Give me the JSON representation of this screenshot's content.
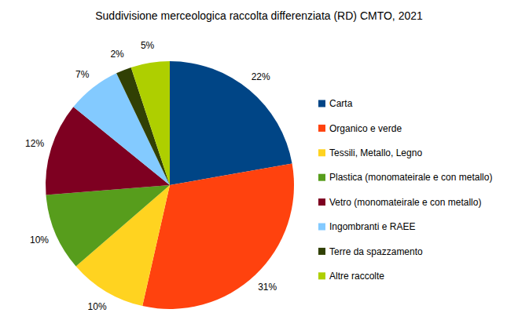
{
  "chart_data": {
    "type": "pie",
    "title": "Suddivisione merceologica raccolta differenziata (RD) CMTO, 2021",
    "categories": [
      "Carta",
      "Organico e verde",
      "Tessili, Metallo, Legno",
      "Plastica (monomateirale e con metallo)",
      "Vetro (monomateirale e con metallo)",
      "Ingombranti e RAEE",
      "Terre da spazzamento",
      "Altre raccolte"
    ],
    "values": [
      22,
      31,
      10,
      10,
      12,
      7,
      2,
      5
    ],
    "value_labels": [
      "22%",
      "31%",
      "10%",
      "10%",
      "12%",
      "7%",
      "2%",
      "5%"
    ],
    "colors": [
      "#004586",
      "#ff420e",
      "#ffd320",
      "#579d1c",
      "#7e0021",
      "#83caff",
      "#314004",
      "#aecf00"
    ],
    "data_labels": true,
    "legend": "right"
  }
}
